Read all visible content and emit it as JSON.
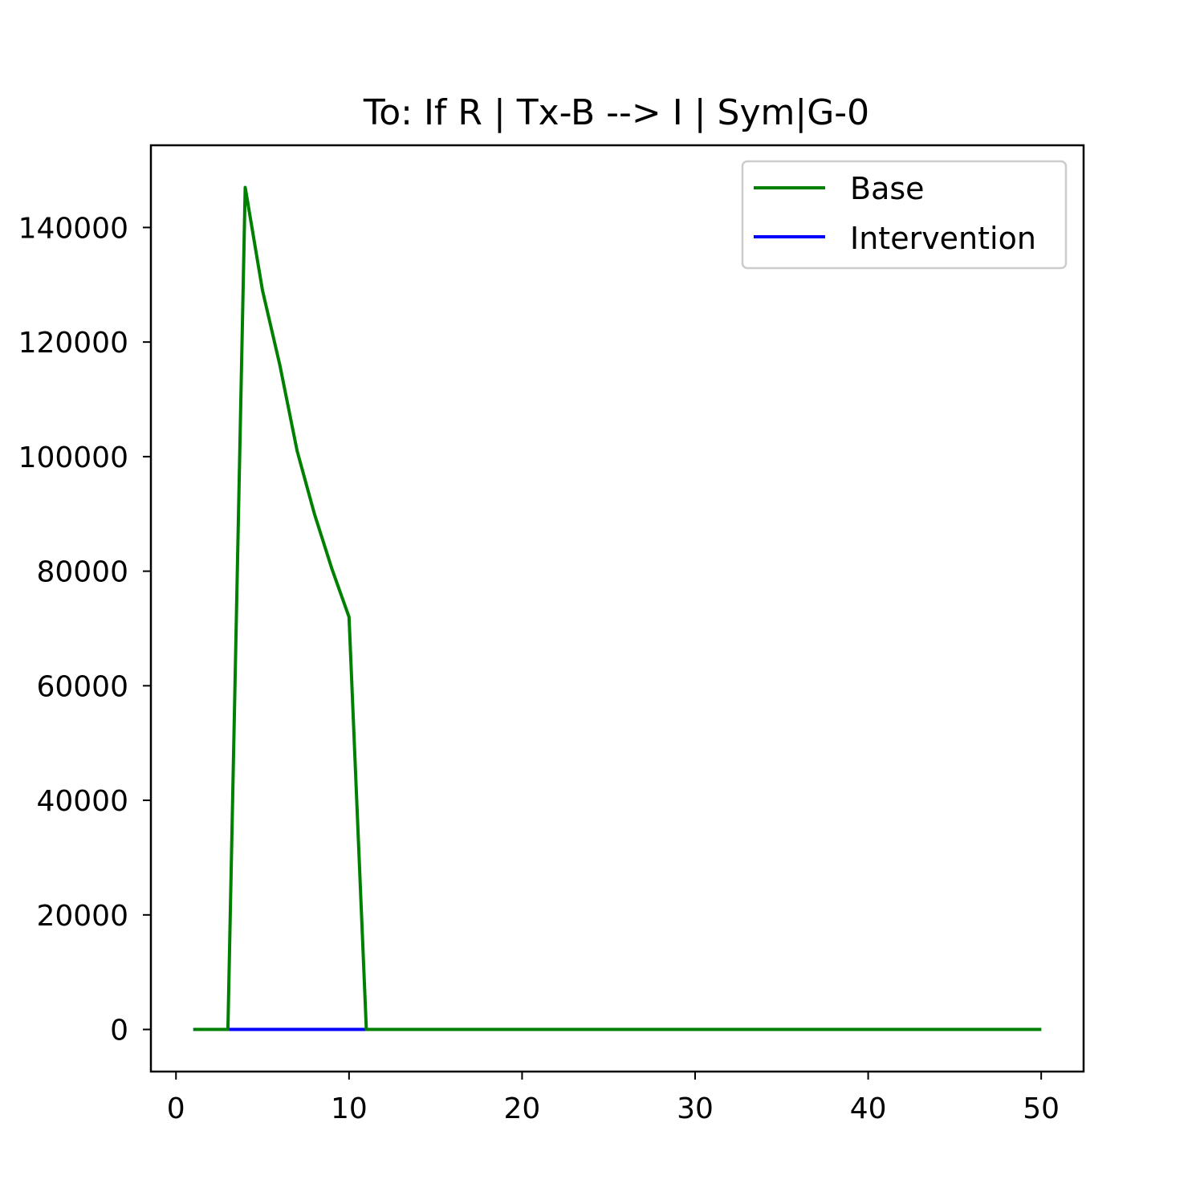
{
  "chart_data": {
    "type": "line",
    "title": "To: If R | Tx-B  --> I | Sym|G-0",
    "xlabel": "",
    "ylabel": "",
    "xlim": [
      -1.45,
      52.45
    ],
    "ylim": [
      -7350,
      154350
    ],
    "xticks": [
      0,
      10,
      20,
      30,
      40,
      50
    ],
    "yticks": [
      0,
      20000,
      40000,
      60000,
      80000,
      100000,
      120000,
      140000
    ],
    "grid": false,
    "legend_position": "upper right",
    "series": [
      {
        "name": "Base",
        "color": "#008000",
        "x": [
          1,
          2,
          3,
          4,
          5,
          6,
          7,
          8,
          9,
          10,
          11,
          12,
          13,
          14,
          15,
          16,
          17,
          18,
          19,
          20,
          21,
          22,
          23,
          24,
          25,
          26,
          27,
          28,
          29,
          30,
          31,
          32,
          33,
          34,
          35,
          36,
          37,
          38,
          39,
          40,
          41,
          42,
          43,
          44,
          45,
          46,
          47,
          48,
          49,
          50
        ],
        "y": [
          0,
          0,
          0,
          147000,
          129000,
          116000,
          101000,
          90000,
          80500,
          72000,
          0,
          0,
          0,
          0,
          0,
          0,
          0,
          0,
          0,
          0,
          0,
          0,
          0,
          0,
          0,
          0,
          0,
          0,
          0,
          0,
          0,
          0,
          0,
          0,
          0,
          0,
          0,
          0,
          0,
          0,
          0,
          0,
          0,
          0,
          0,
          0,
          0,
          0,
          0,
          0
        ]
      },
      {
        "name": "Intervention",
        "color": "#0000ff",
        "x": [
          1,
          2,
          3,
          4,
          5,
          6,
          7,
          8,
          9,
          10,
          11,
          12,
          13,
          14,
          15,
          16,
          17,
          18,
          19,
          20,
          21,
          22,
          23,
          24,
          25,
          26,
          27,
          28,
          29,
          30,
          31,
          32,
          33,
          34,
          35,
          36,
          37,
          38,
          39,
          40,
          41,
          42,
          43,
          44,
          45,
          46,
          47,
          48,
          49,
          50
        ],
        "y": [
          0,
          0,
          0,
          0,
          0,
          0,
          0,
          0,
          0,
          0,
          0,
          0,
          0,
          0,
          0,
          0,
          0,
          0,
          0,
          0,
          0,
          0,
          0,
          0,
          0,
          0,
          0,
          0,
          0,
          0,
          0,
          0,
          0,
          0,
          0,
          0,
          0,
          0,
          0,
          0,
          0,
          0,
          0,
          0,
          0,
          0,
          0,
          0,
          0,
          0
        ]
      }
    ]
  }
}
